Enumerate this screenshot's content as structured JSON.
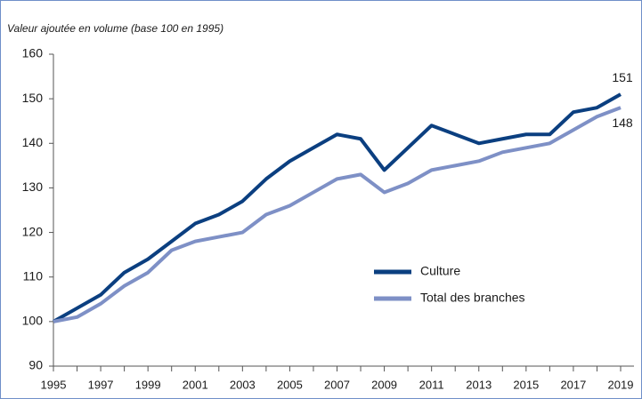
{
  "chart_data": {
    "type": "line",
    "ylabel": "Valeur ajoutée en volume (base 100 en 1995)",
    "x": [
      1995,
      1996,
      1997,
      1998,
      1999,
      2000,
      2001,
      2002,
      2003,
      2004,
      2005,
      2006,
      2007,
      2008,
      2009,
      2010,
      2011,
      2012,
      2013,
      2014,
      2015,
      2016,
      2017,
      2018,
      2019
    ],
    "series": [
      {
        "name": "Culture",
        "color": "#0b3f80",
        "values": [
          100,
          103,
          106,
          111,
          114,
          118,
          122,
          124,
          127,
          132,
          136,
          139,
          142,
          141,
          134,
          139,
          144,
          142,
          140,
          141,
          142,
          142,
          147,
          148,
          151
        ]
      },
      {
        "name": "Total des branches",
        "color": "#7e90c6",
        "values": [
          100,
          101,
          104,
          108,
          111,
          116,
          118,
          119,
          120,
          124,
          126,
          129,
          132,
          133,
          129,
          131,
          134,
          135,
          136,
          138,
          139,
          140,
          143,
          146,
          148
        ]
      }
    ],
    "label_last": true,
    "xlim": [
      1995,
      2019
    ],
    "xticks": [
      1995,
      1997,
      1999,
      2001,
      2003,
      2005,
      2007,
      2009,
      2011,
      2013,
      2015,
      2017,
      2019
    ],
    "xminorticks": [
      1996,
      1998,
      2000,
      2002,
      2004,
      2006,
      2008,
      2010,
      2012,
      2014,
      2016,
      2018
    ],
    "ylim": [
      90,
      160
    ],
    "yticks": [
      90,
      100,
      110,
      120,
      130,
      140,
      150,
      160
    ],
    "grid": false,
    "legend": "lower right"
  }
}
